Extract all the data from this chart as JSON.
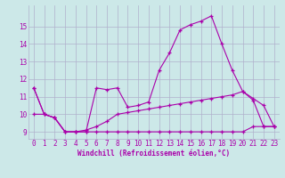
{
  "xlabel": "Windchill (Refroidissement éolien,°C)",
  "bg_color": "#cce8e8",
  "grid_color": "#b0b0cc",
  "line_color": "#aa00aa",
  "x": [
    0,
    1,
    2,
    3,
    4,
    5,
    6,
    7,
    8,
    9,
    10,
    11,
    12,
    13,
    14,
    15,
    16,
    17,
    18,
    19,
    20,
    21,
    22,
    23
  ],
  "line1": [
    11.5,
    10.0,
    9.8,
    9.0,
    9.0,
    9.0,
    9.0,
    9.0,
    9.0,
    9.0,
    9.0,
    9.0,
    9.0,
    9.0,
    9.0,
    9.0,
    9.0,
    9.0,
    9.0,
    9.0,
    9.0,
    9.3,
    9.3,
    9.3
  ],
  "line2": [
    10.0,
    10.0,
    9.8,
    9.0,
    9.0,
    9.1,
    9.3,
    9.6,
    10.0,
    10.1,
    10.2,
    10.3,
    10.4,
    10.5,
    10.6,
    10.7,
    10.8,
    10.9,
    11.0,
    11.1,
    11.3,
    10.8,
    9.3,
    9.3
  ],
  "line3": [
    11.5,
    10.0,
    9.8,
    9.0,
    9.0,
    9.0,
    11.5,
    11.4,
    11.5,
    10.4,
    10.5,
    10.7,
    12.5,
    13.5,
    14.8,
    15.1,
    15.3,
    15.6,
    14.0,
    12.5,
    11.3,
    10.9,
    10.5,
    9.3
  ],
  "ylim": [
    8.6,
    16.2
  ],
  "xlim": [
    -0.5,
    23.5
  ],
  "yticks": [
    9,
    10,
    11,
    12,
    13,
    14,
    15
  ],
  "xticks": [
    0,
    1,
    2,
    3,
    4,
    5,
    6,
    7,
    8,
    9,
    10,
    11,
    12,
    13,
    14,
    15,
    16,
    17,
    18,
    19,
    20,
    21,
    22,
    23
  ],
  "tick_fontsize": 5.5,
  "xlabel_fontsize": 5.5
}
